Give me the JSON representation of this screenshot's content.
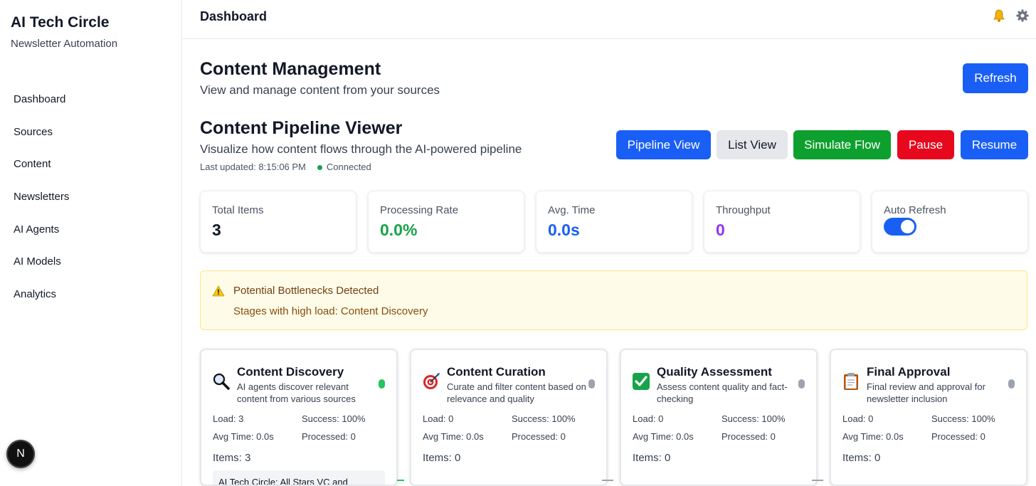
{
  "sidebar": {
    "brand_title": "AI Tech Circle",
    "brand_subtitle": "Newsletter Automation",
    "items": [
      {
        "label": "Dashboard"
      },
      {
        "label": "Sources"
      },
      {
        "label": "Content"
      },
      {
        "label": "Newsletters"
      },
      {
        "label": "AI Agents"
      },
      {
        "label": "AI Models"
      },
      {
        "label": "Analytics"
      }
    ],
    "badge": "N"
  },
  "header": {
    "title": "Dashboard",
    "icons": [
      "bell-icon",
      "gear-icon"
    ]
  },
  "content_management": {
    "title": "Content Management",
    "subtitle": "View and manage content from your sources",
    "refresh_label": "Refresh"
  },
  "pipeline": {
    "title": "Content Pipeline Viewer",
    "subtitle": "Visualize how content flows through the AI-powered pipeline",
    "last_updated": "Last updated: 8:15:06 PM",
    "connection": "Connected",
    "buttons": {
      "pipeline_view": "Pipeline View",
      "list_view": "List View",
      "simulate": "Simulate Flow",
      "pause": "Pause",
      "resume": "Resume"
    }
  },
  "stats": {
    "total_items": {
      "label": "Total Items",
      "value": "3"
    },
    "processing_rate": {
      "label": "Processing Rate",
      "value": "0.0%"
    },
    "avg_time": {
      "label": "Avg. Time",
      "value": "0.0s"
    },
    "throughput": {
      "label": "Throughput",
      "value": "0"
    },
    "auto_refresh": {
      "label": "Auto Refresh",
      "enabled": true
    }
  },
  "alert": {
    "title": "Potential Bottlenecks Detected",
    "text": "Stages with high load: Content Discovery"
  },
  "stages": [
    {
      "icon": "magnifier-icon",
      "title": "Content Discovery",
      "desc": "AI agents discover relevant content from various sources",
      "load": "Load: 3",
      "success": "Success: 100%",
      "avg": "Avg Time: 0.0s",
      "processed": "Processed: 0",
      "items": "Items: 3",
      "status": "active",
      "preview": "AI Tech Circle: All Stars VC and"
    },
    {
      "icon": "target-icon",
      "title": "Content Curation",
      "desc": "Curate and filter content based on relevance and quality",
      "load": "Load: 0",
      "success": "Success: 100%",
      "avg": "Avg Time: 0.0s",
      "processed": "Processed: 0",
      "items": "Items: 0",
      "status": "idle"
    },
    {
      "icon": "checkmark-icon",
      "title": "Quality Assessment",
      "desc": "Assess content quality and fact-checking",
      "load": "Load: 0",
      "success": "Success: 100%",
      "avg": "Avg Time: 0.0s",
      "processed": "Processed: 0",
      "items": "Items: 0",
      "status": "idle"
    },
    {
      "icon": "clipboard-icon",
      "title": "Final Approval",
      "desc": "Final review and approval for newsletter inclusion",
      "load": "Load: 0",
      "success": "Success: 100%",
      "avg": "Avg Time: 0.0s",
      "processed": "Processed: 0",
      "items": "Items: 0",
      "status": "idle"
    }
  ],
  "colors": {
    "primary": "#1a5ff5",
    "success": "#0ea02e",
    "danger": "#e8081d",
    "rate_value": "#16a34a",
    "time_value": "#1a5ff5",
    "throughput_value": "#9333ea"
  }
}
